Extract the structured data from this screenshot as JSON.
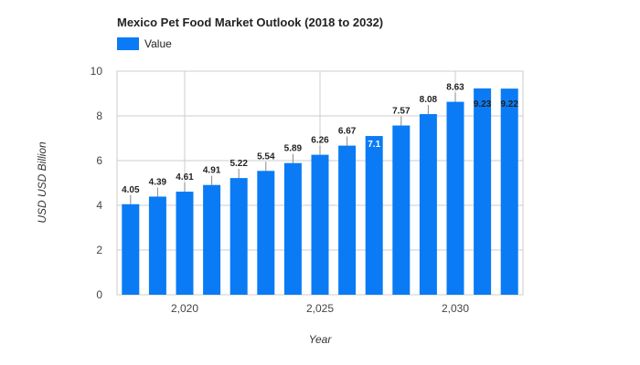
{
  "chart_data": {
    "type": "bar",
    "title": "Mexico Pet Food Market Outlook (2018 to 2032)",
    "xlabel": "Year",
    "ylabel": "USD USD Billion",
    "legend": {
      "position": "top-left",
      "entries": [
        "Value"
      ]
    },
    "x": [
      2018,
      2019,
      2020,
      2021,
      2022,
      2023,
      2024,
      2025,
      2026,
      2027,
      2028,
      2029,
      2030,
      2031,
      2032
    ],
    "series": [
      {
        "name": "Value",
        "color": "#0a7bf5",
        "values": [
          4.05,
          4.39,
          4.61,
          4.91,
          5.22,
          5.54,
          5.89,
          6.26,
          6.67,
          7.1,
          7.57,
          8.08,
          8.63,
          9.23,
          9.22
        ]
      }
    ],
    "data_labels": [
      "4.05",
      "4.39",
      "4.61",
      "4.91",
      "5.22",
      "5.54",
      "5.89",
      "6.26",
      "6.67",
      "7.1",
      "7.57",
      "8.08",
      "8.63",
      "9.23",
      "9.22"
    ],
    "x_ticks": [
      {
        "value": 2020,
        "label": "2,020"
      },
      {
        "value": 2025,
        "label": "2,025"
      },
      {
        "value": 2030,
        "label": "2,030"
      }
    ],
    "y_ticks": [
      "0",
      "2",
      "4",
      "6",
      "8",
      "10"
    ],
    "ylim": [
      0,
      10
    ],
    "grid": true
  }
}
